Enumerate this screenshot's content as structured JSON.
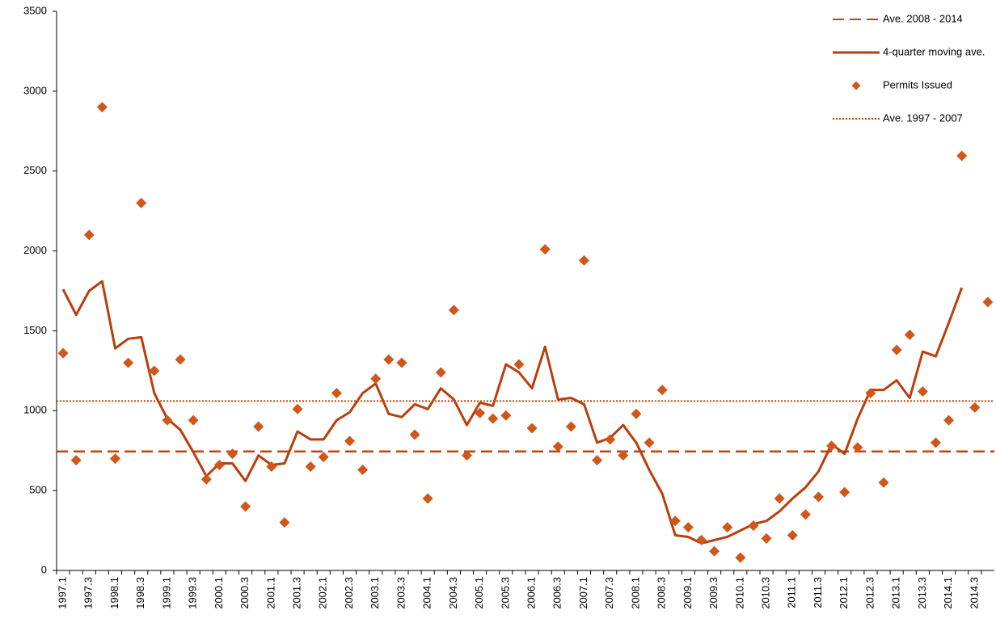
{
  "chart_data": {
    "type": "combo",
    "categories": [
      "1997.1",
      null,
      "1997.3",
      null,
      "1998.1",
      null,
      "1998.3",
      null,
      "1999.1",
      null,
      "1999.3",
      null,
      "2000.1",
      null,
      "2000.3",
      null,
      "2001.1",
      null,
      "2001.3",
      null,
      "2002.1",
      null,
      "2002.3",
      null,
      "2003.1",
      null,
      "2003.3",
      null,
      "2004.1",
      null,
      "2004.3",
      null,
      "2005.1",
      null,
      "2005.3",
      null,
      "2006.1",
      null,
      "2006.3",
      null,
      "2007.1",
      null,
      "2007.3",
      null,
      "2008.1",
      null,
      "2008.3",
      null,
      "2009.1",
      null,
      "2009.3",
      null,
      "2010.1",
      null,
      "2010.3",
      null,
      "2011.1",
      null,
      "2011.3",
      null,
      "2012.1",
      null,
      "2012.3",
      null,
      "2013.1",
      null,
      "2013.3",
      null,
      "2014.1",
      null,
      "2014.3",
      null
    ],
    "series": [
      {
        "name": "Ave. 2008 - 2014",
        "style": "dashed",
        "color": "#c0440e",
        "value": 745
      },
      {
        "name": "4-quarter moving ave.",
        "style": "line",
        "color": "#b83f0c",
        "values": [
          1760,
          1600,
          1750,
          1810,
          1390,
          1450,
          1460,
          1110,
          950,
          880,
          740,
          590,
          670,
          670,
          560,
          720,
          660,
          670,
          870,
          820,
          820,
          940,
          990,
          1110,
          1170,
          980,
          960,
          1040,
          1010,
          1140,
          1070,
          910,
          1050,
          1030,
          1290,
          1240,
          1140,
          1400,
          1070,
          1080,
          1040,
          800,
          830,
          910,
          800,
          630,
          480,
          220,
          210,
          170,
          190,
          210,
          250,
          290,
          310,
          370,
          450,
          520,
          620,
          790,
          730,
          950,
          1130,
          1130,
          1190,
          1080,
          1370,
          1340,
          1550,
          1770,
          null,
          null
        ]
      },
      {
        "name": "Permits Issued",
        "style": "markers",
        "color": "#d0561a",
        "values": [
          1360,
          690,
          2100,
          2900,
          700,
          1300,
          2300,
          1250,
          940,
          1320,
          940,
          570,
          660,
          730,
          400,
          900,
          650,
          300,
          1010,
          650,
          710,
          1110,
          810,
          630,
          1200,
          1320,
          1300,
          850,
          450,
          1240,
          1630,
          720,
          985,
          950,
          970,
          1290,
          890,
          2010,
          775,
          900,
          1940,
          690,
          820,
          720,
          980,
          800,
          1130,
          310,
          270,
          190,
          120,
          270,
          80,
          280,
          200,
          450,
          220,
          350,
          460,
          780,
          490,
          770,
          1110,
          550,
          1380,
          1475,
          1120,
          800,
          940,
          2595,
          1020,
          1680
        ]
      },
      {
        "name": "Ave. 1997 - 2007",
        "style": "dotted",
        "color": "#c0440e",
        "value": 1060
      }
    ],
    "ylim": [
      0,
      3500
    ],
    "yticks": [
      0,
      500,
      1000,
      1500,
      2000,
      2500,
      3000,
      3500
    ],
    "legend": "top-right"
  }
}
